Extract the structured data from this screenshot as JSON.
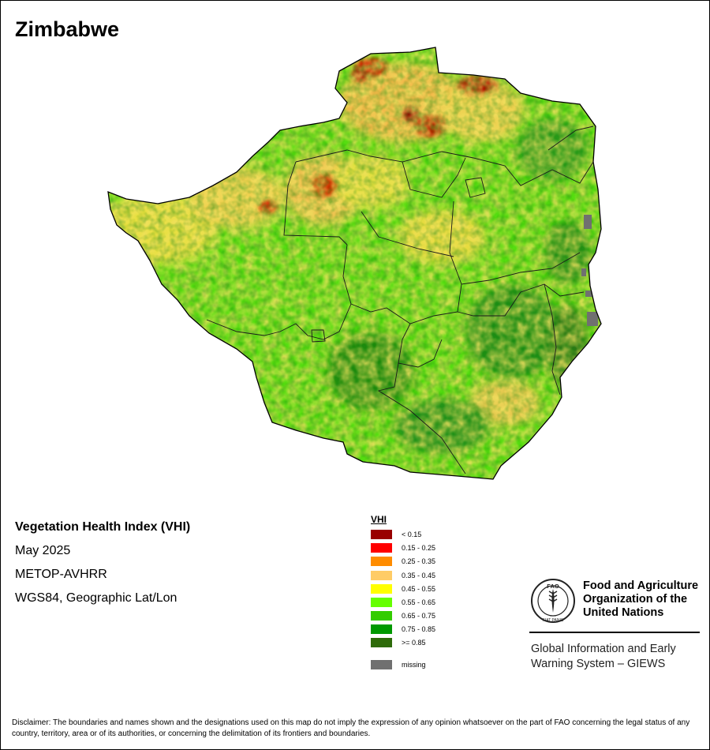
{
  "map_title": "Zimbabwe",
  "info": {
    "product": "Vegetation Health Index (VHI)",
    "period": "May 2025",
    "sensor": "METOP-AVHRR",
    "projection": "WGS84, Geographic Lat/Lon"
  },
  "legend": {
    "title": "VHI",
    "classes": [
      {
        "label": "< 0.15",
        "color": "#990000"
      },
      {
        "label": "0.15 - 0.25",
        "color": "#ff0000"
      },
      {
        "label": "0.25 - 0.35",
        "color": "#ff8c00"
      },
      {
        "label": "0.35 - 0.45",
        "color": "#ffcc66"
      },
      {
        "label": "0.45 - 0.55",
        "color": "#ffff00"
      },
      {
        "label": "0.55 - 0.65",
        "color": "#66ff00"
      },
      {
        "label": "0.65 - 0.75",
        "color": "#33cc00"
      },
      {
        "label": "0.75 - 0.85",
        "color": "#009900"
      },
      {
        "label": ">= 0.85",
        "color": "#2e6b0a"
      }
    ],
    "missing": {
      "label": "missing",
      "color": "#707070"
    }
  },
  "org": {
    "name_lines": [
      "Food and Agriculture",
      "Organization of the",
      "United Nations"
    ],
    "logo_text": "FAO",
    "motto": "FIAT PANIS",
    "program_lines": [
      "Global Information and Early",
      "Warning System – GIEWS"
    ]
  },
  "disclaimer": "Disclaimer: The boundaries and names shown and the designations used on this map do not imply the expression of any opinion whatsoever on the part of FAO concerning the legal status of any country, territory, area or of its authorities, or concerning the delimitation of its frontiers and boundaries."
}
